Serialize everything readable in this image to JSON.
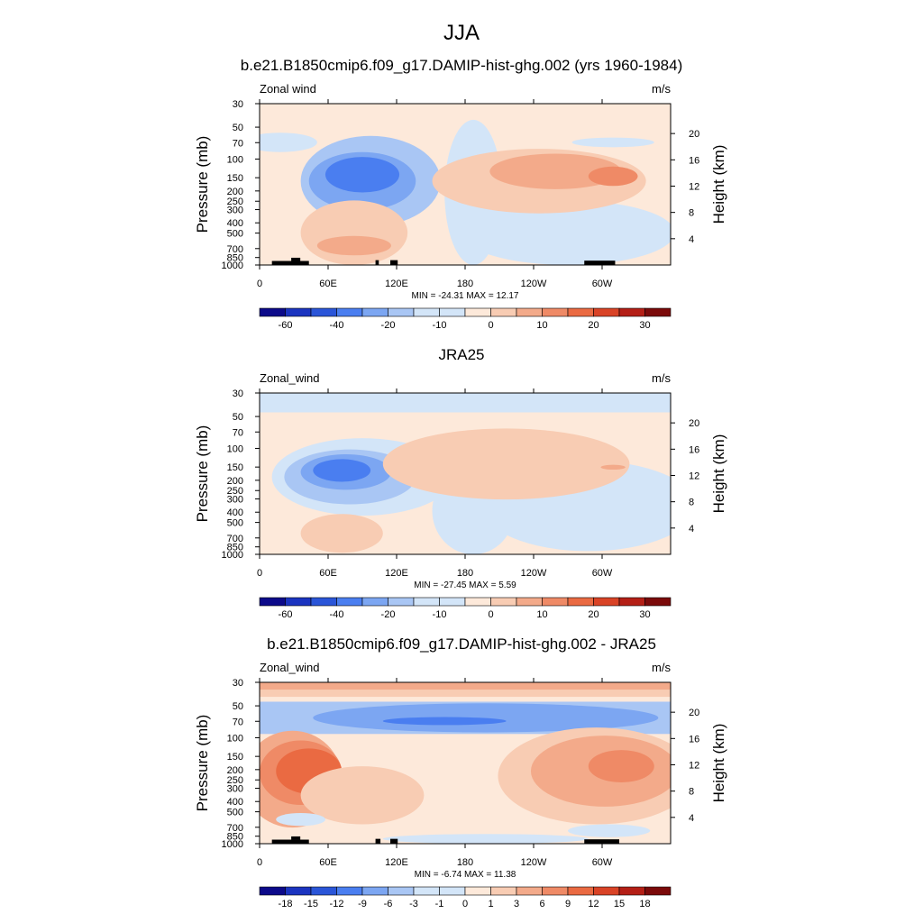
{
  "figure": {
    "title": "JJA"
  },
  "chart_data": [
    {
      "type": "heatmap",
      "title": "b.e21.B1850cmip6.f09_g17.DAMIP-hist-ghg.002 (yrs 1960-1984)",
      "left_label": "Zonal wind",
      "right_label": "m/s",
      "ylabel": "Pressure (mb)",
      "ylabel_right": "Height (km)",
      "x_ticks": [
        "0",
        "60E",
        "120E",
        "180",
        "120W",
        "60W"
      ],
      "y_ticks": [
        "30",
        "50",
        "70",
        "100",
        "150",
        "200",
        "250",
        "300",
        "400",
        "500",
        "700",
        "850",
        "1000"
      ],
      "y_right_ticks": [
        "20",
        "16",
        "12",
        "8",
        "4"
      ],
      "stats": "MIN = -24.31  MAX =  12.17",
      "colorbar_labels": [
        "-60",
        "-40",
        "-20",
        "-10",
        "0",
        "10",
        "20",
        "30"
      ],
      "log_pressure_axis": true
    },
    {
      "type": "heatmap",
      "title": "JRA25",
      "left_label": "Zonal_wind",
      "right_label": "m/s",
      "ylabel": "Pressure (mb)",
      "ylabel_right": "Height (km)",
      "x_ticks": [
        "0",
        "60E",
        "120E",
        "180",
        "120W",
        "60W"
      ],
      "y_ticks": [
        "30",
        "50",
        "70",
        "100",
        "150",
        "200",
        "250",
        "300",
        "400",
        "500",
        "700",
        "850",
        "1000"
      ],
      "y_right_ticks": [
        "20",
        "16",
        "12",
        "8",
        "4"
      ],
      "stats": "MIN = -27.45  MAX =   5.59",
      "colorbar_labels": [
        "-60",
        "-40",
        "-20",
        "-10",
        "0",
        "10",
        "20",
        "30"
      ],
      "log_pressure_axis": true
    },
    {
      "type": "heatmap",
      "title": "b.e21.B1850cmip6.f09_g17.DAMIP-hist-ghg.002 - JRA25",
      "left_label": "Zonal_wind",
      "right_label": "m/s",
      "ylabel": "Pressure (mb)",
      "ylabel_right": "Height (km)",
      "x_ticks": [
        "0",
        "60E",
        "120E",
        "180",
        "120W",
        "60W"
      ],
      "y_ticks": [
        "30",
        "50",
        "70",
        "100",
        "150",
        "200",
        "250",
        "300",
        "400",
        "500",
        "700",
        "850",
        "1000"
      ],
      "y_right_ticks": [
        "20",
        "16",
        "12",
        "8",
        "4"
      ],
      "stats": "MIN =  -6.74  MAX =  11.38",
      "colorbar_labels": [
        "-18",
        "-15",
        "-12",
        "-9",
        "-6",
        "-3",
        "-1",
        "0",
        "1",
        "3",
        "6",
        "9",
        "12",
        "15",
        "18"
      ],
      "log_pressure_axis": true
    }
  ],
  "colors": {
    "diverging": [
      "#0c0a8a",
      "#1b34c0",
      "#2a55d8",
      "#4a7ef0",
      "#7ca6f2",
      "#a9c6f4",
      "#d3e5f8",
      "#fde9da",
      "#f8ccb3",
      "#f3aa8a",
      "#ef8a66",
      "#ea6a42",
      "#d94326",
      "#b41f16",
      "#7b0a0a"
    ],
    "land": "#000000"
  }
}
